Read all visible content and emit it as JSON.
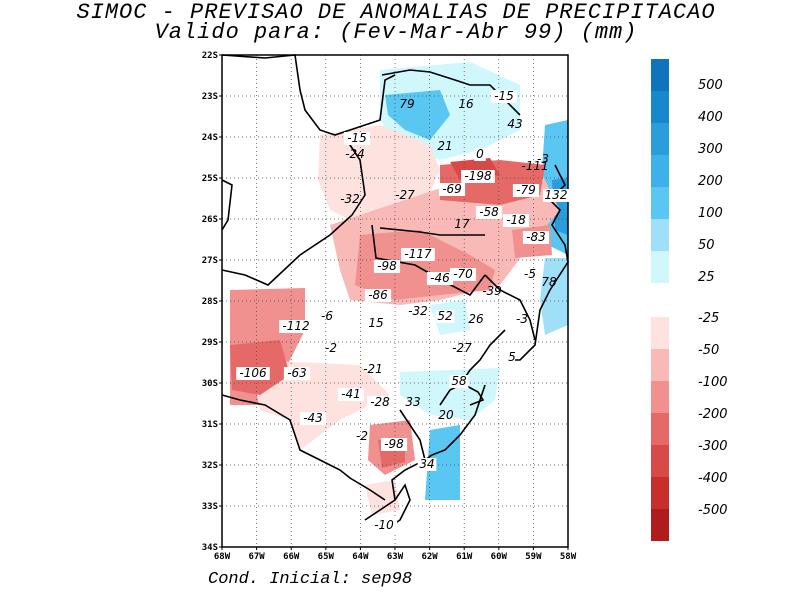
{
  "header": {
    "title": "SIMOC - PREVISAO DE ANOMALIAS DE PRECIPITACAO",
    "subtitle": "Valido para: (Fev-Mar-Abr 99) (mm)"
  },
  "footer": {
    "initial_condition": "Cond. Inicial: sep98"
  },
  "axes": {
    "lat_labels": [
      "22S",
      "23S",
      "24S",
      "25S",
      "26S",
      "27S",
      "28S",
      "29S",
      "30S",
      "31S",
      "32S",
      "33S",
      "34S"
    ],
    "lon_labels": [
      "68W",
      "67W",
      "66W",
      "65W",
      "64W",
      "63W",
      "62W",
      "61W",
      "60W",
      "59W",
      "58W"
    ]
  },
  "colorbar": {
    "positive": [
      {
        "label": "500",
        "color": "#0f74b9"
      },
      {
        "label": "400",
        "color": "#1888cc"
      },
      {
        "label": "300",
        "color": "#2a9ddc"
      },
      {
        "label": "200",
        "color": "#3cb1ea"
      },
      {
        "label": "100",
        "color": "#5ac6f2"
      },
      {
        "label": "50",
        "color": "#9fe0f8"
      },
      {
        "label": "25",
        "color": "#cff7fc"
      }
    ],
    "negative": [
      {
        "label": "-25",
        "color": "#fde2e0"
      },
      {
        "label": "-50",
        "color": "#f8b9b7"
      },
      {
        "label": "-100",
        "color": "#f09190"
      },
      {
        "label": "-200",
        "color": "#e56966"
      },
      {
        "label": "-300",
        "color": "#d84a47"
      },
      {
        "label": "-400",
        "color": "#c82e2c"
      },
      {
        "label": "-500",
        "color": "#b01c1c"
      }
    ]
  },
  "anomaly_labels": [
    "79",
    "16",
    "-15",
    "43",
    "-15",
    "-24",
    "21",
    "0",
    "-111",
    "-3",
    "-198",
    "-69",
    "-79",
    "132",
    "-32",
    "-27",
    "-58",
    "-18",
    "17",
    "-83",
    "-117",
    "-98",
    "-46",
    "-70",
    "-5",
    "78",
    "-86",
    "-39",
    "-6",
    "-112",
    "15",
    "-32",
    "52",
    "26",
    "-3",
    "-2",
    "-27",
    "5",
    "-106",
    "-63",
    "-21",
    "58",
    "-41",
    "-28",
    "33",
    "-43",
    "20",
    "-2",
    "-98",
    "34",
    "-10"
  ]
}
